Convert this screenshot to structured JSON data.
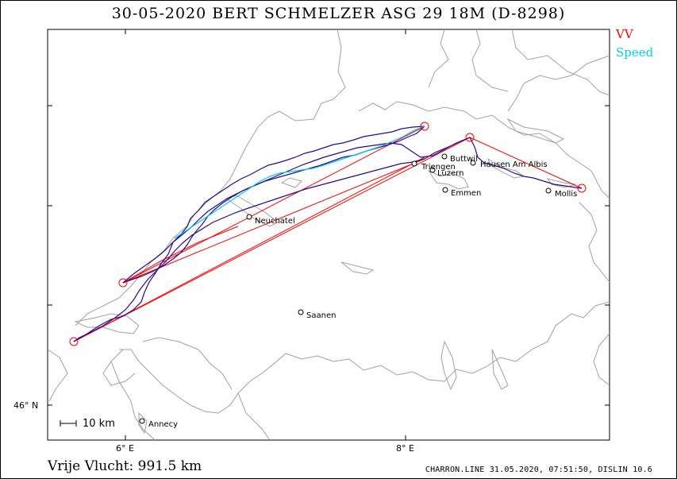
{
  "header": {
    "title": "30-05-2020   BERT SCHMELZER   ASG 29 18M (D-8298)"
  },
  "legend": [
    {
      "label": "VV",
      "color": "#ff0000"
    },
    {
      "label": "Speed",
      "color": "#00d0f0"
    }
  ],
  "axes": {
    "x_labels": [
      "6° E",
      "8° E"
    ],
    "y_labels": [
      "46° N"
    ]
  },
  "places": [
    {
      "name": "Neuchatel"
    },
    {
      "name": "Saanen"
    },
    {
      "name": "Annecy"
    },
    {
      "name": "Buttwil"
    },
    {
      "name": "Triengen"
    },
    {
      "name": "Luzern"
    },
    {
      "name": "Hausen Am Albis"
    },
    {
      "name": "Emmen"
    },
    {
      "name": "Mollis"
    }
  ],
  "scale": {
    "label": "10 km"
  },
  "footer": {
    "distance": "Vrije Vlucht:  991.5 km",
    "credit": "CHARRON.LINE 31.05.2020, 07:51:50, DISLIN 10.6"
  },
  "colors": {
    "task": "#ff0000",
    "track": "#2a0a8c",
    "speed": "#00c8f0",
    "border": "#a0a0a0"
  }
}
